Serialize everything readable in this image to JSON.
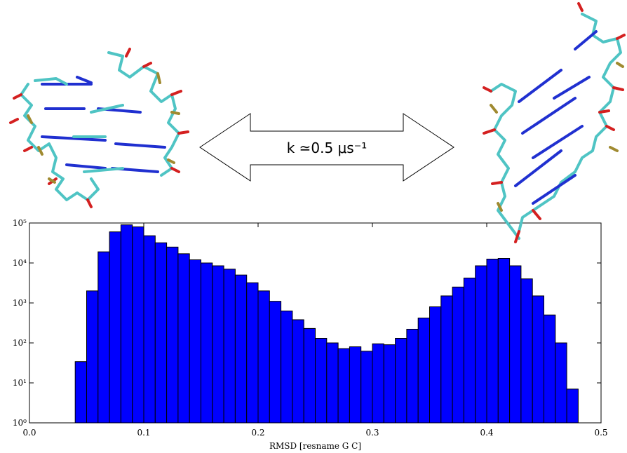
{
  "chart_data": {
    "type": "histogram",
    "annotation": "k ≃0.5 μs⁻¹",
    "xlabel": "RMSD [resname G C]",
    "bins": [
      0.04,
      0.05,
      0.06,
      0.07,
      0.08,
      0.09,
      0.1,
      0.11,
      0.12,
      0.13,
      0.14,
      0.15,
      0.16,
      0.17,
      0.18,
      0.19,
      0.2,
      0.21,
      0.22,
      0.23,
      0.24,
      0.25,
      0.26,
      0.27,
      0.28,
      0.29,
      0.3,
      0.31,
      0.32,
      0.33,
      0.34,
      0.35,
      0.36,
      0.37,
      0.38,
      0.39,
      0.4,
      0.41,
      0.42,
      0.43,
      0.44,
      0.45,
      0.46,
      0.47,
      0.48
    ],
    "values": [
      34,
      2000,
      19000,
      60000,
      90000,
      80000,
      48000,
      32000,
      25000,
      17000,
      12000,
      10000,
      8500,
      7000,
      5000,
      3200,
      2000,
      1100,
      630,
      380,
      230,
      130,
      100,
      72,
      80,
      62,
      95,
      90,
      130,
      220,
      420,
      800,
      1500,
      2500,
      4200,
      8500,
      12500,
      13000,
      8500,
      4000,
      1500,
      500,
      100,
      7
    ],
    "color": "#0000ff",
    "log_y": true,
    "xlim": [
      0,
      0.5
    ],
    "xticks": [
      {
        "value": 0,
        "label": "0.0"
      },
      0.1,
      0.2,
      0.3,
      0.4,
      0.5
    ],
    "ylim": [
      1,
      100000
    ],
    "yticks": [
      {
        "value": 1,
        "label": "10⁰"
      },
      {
        "value": 10,
        "label": "10¹"
      },
      {
        "value": 100,
        "label": "10²"
      },
      {
        "value": 1000,
        "label": "10³"
      },
      {
        "value": 10000,
        "label": "10⁴"
      },
      {
        "value": 100000,
        "label": "10⁵"
      }
    ]
  }
}
